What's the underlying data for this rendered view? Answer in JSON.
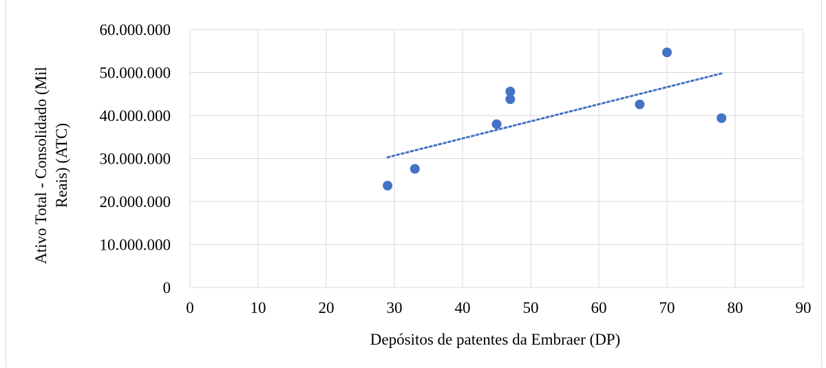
{
  "chart_data": {
    "type": "scatter",
    "xlabel": "Depósitos de patentes da Embraer (DP)",
    "ylabel_lines": [
      "Ativo Total - Consolidado (Mil",
      "Reais) (ATC)"
    ],
    "xlim": [
      0,
      90
    ],
    "ylim": [
      0,
      60000000
    ],
    "x_ticks": [
      0,
      10,
      20,
      30,
      40,
      50,
      60,
      70,
      80,
      90
    ],
    "x_tick_labels": [
      "0",
      "10",
      "20",
      "30",
      "40",
      "50",
      "60",
      "70",
      "80",
      "90"
    ],
    "y_ticks": [
      0,
      10000000,
      20000000,
      30000000,
      40000000,
      50000000,
      60000000
    ],
    "y_tick_labels": [
      "0",
      "10.000.000",
      "20.000.000",
      "30.000.000",
      "40.000.000",
      "50.000.000",
      "60.000.000"
    ],
    "grid": true,
    "marker_color": "#4472c4",
    "points": [
      {
        "x": 29,
        "y": 23700000
      },
      {
        "x": 33,
        "y": 27600000
      },
      {
        "x": 45,
        "y": 38000000
      },
      {
        "x": 47,
        "y": 43800000
      },
      {
        "x": 47,
        "y": 45600000
      },
      {
        "x": 66,
        "y": 42600000
      },
      {
        "x": 70,
        "y": 54700000
      },
      {
        "x": 78,
        "y": 39400000
      }
    ],
    "trendline": {
      "type": "linear",
      "dotted": true,
      "x_start": 29,
      "y_start": 30300000,
      "x_end": 78,
      "y_end": 49800000
    }
  }
}
